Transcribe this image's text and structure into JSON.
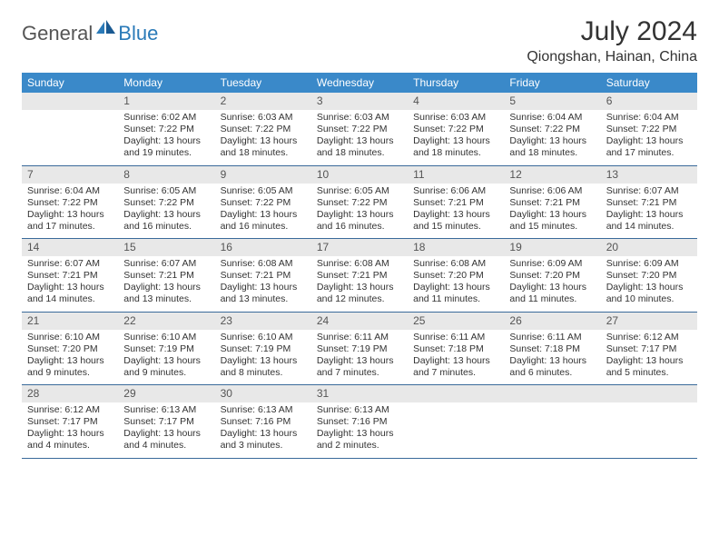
{
  "logo": {
    "general": "General",
    "blue": "Blue"
  },
  "title": "July 2024",
  "location": "Qiongshan, Hainan, China",
  "colors": {
    "header_bg": "#3a89c9",
    "header_text": "#ffffff",
    "daynum_bg": "#e8e8e8",
    "row_divider": "#3a6a9a",
    "logo_blue": "#2a7ab8",
    "logo_gray": "#555555"
  },
  "weekdays": [
    "Sunday",
    "Monday",
    "Tuesday",
    "Wednesday",
    "Thursday",
    "Friday",
    "Saturday"
  ],
  "weeks": [
    [
      {
        "empty": true
      },
      {
        "day": "1",
        "sunrise": "Sunrise: 6:02 AM",
        "sunset": "Sunset: 7:22 PM",
        "dl1": "Daylight: 13 hours",
        "dl2": "and 19 minutes."
      },
      {
        "day": "2",
        "sunrise": "Sunrise: 6:03 AM",
        "sunset": "Sunset: 7:22 PM",
        "dl1": "Daylight: 13 hours",
        "dl2": "and 18 minutes."
      },
      {
        "day": "3",
        "sunrise": "Sunrise: 6:03 AM",
        "sunset": "Sunset: 7:22 PM",
        "dl1": "Daylight: 13 hours",
        "dl2": "and 18 minutes."
      },
      {
        "day": "4",
        "sunrise": "Sunrise: 6:03 AM",
        "sunset": "Sunset: 7:22 PM",
        "dl1": "Daylight: 13 hours",
        "dl2": "and 18 minutes."
      },
      {
        "day": "5",
        "sunrise": "Sunrise: 6:04 AM",
        "sunset": "Sunset: 7:22 PM",
        "dl1": "Daylight: 13 hours",
        "dl2": "and 18 minutes."
      },
      {
        "day": "6",
        "sunrise": "Sunrise: 6:04 AM",
        "sunset": "Sunset: 7:22 PM",
        "dl1": "Daylight: 13 hours",
        "dl2": "and 17 minutes."
      }
    ],
    [
      {
        "day": "7",
        "sunrise": "Sunrise: 6:04 AM",
        "sunset": "Sunset: 7:22 PM",
        "dl1": "Daylight: 13 hours",
        "dl2": "and 17 minutes."
      },
      {
        "day": "8",
        "sunrise": "Sunrise: 6:05 AM",
        "sunset": "Sunset: 7:22 PM",
        "dl1": "Daylight: 13 hours",
        "dl2": "and 16 minutes."
      },
      {
        "day": "9",
        "sunrise": "Sunrise: 6:05 AM",
        "sunset": "Sunset: 7:22 PM",
        "dl1": "Daylight: 13 hours",
        "dl2": "and 16 minutes."
      },
      {
        "day": "10",
        "sunrise": "Sunrise: 6:05 AM",
        "sunset": "Sunset: 7:22 PM",
        "dl1": "Daylight: 13 hours",
        "dl2": "and 16 minutes."
      },
      {
        "day": "11",
        "sunrise": "Sunrise: 6:06 AM",
        "sunset": "Sunset: 7:21 PM",
        "dl1": "Daylight: 13 hours",
        "dl2": "and 15 minutes."
      },
      {
        "day": "12",
        "sunrise": "Sunrise: 6:06 AM",
        "sunset": "Sunset: 7:21 PM",
        "dl1": "Daylight: 13 hours",
        "dl2": "and 15 minutes."
      },
      {
        "day": "13",
        "sunrise": "Sunrise: 6:07 AM",
        "sunset": "Sunset: 7:21 PM",
        "dl1": "Daylight: 13 hours",
        "dl2": "and 14 minutes."
      }
    ],
    [
      {
        "day": "14",
        "sunrise": "Sunrise: 6:07 AM",
        "sunset": "Sunset: 7:21 PM",
        "dl1": "Daylight: 13 hours",
        "dl2": "and 14 minutes."
      },
      {
        "day": "15",
        "sunrise": "Sunrise: 6:07 AM",
        "sunset": "Sunset: 7:21 PM",
        "dl1": "Daylight: 13 hours",
        "dl2": "and 13 minutes."
      },
      {
        "day": "16",
        "sunrise": "Sunrise: 6:08 AM",
        "sunset": "Sunset: 7:21 PM",
        "dl1": "Daylight: 13 hours",
        "dl2": "and 13 minutes."
      },
      {
        "day": "17",
        "sunrise": "Sunrise: 6:08 AM",
        "sunset": "Sunset: 7:21 PM",
        "dl1": "Daylight: 13 hours",
        "dl2": "and 12 minutes."
      },
      {
        "day": "18",
        "sunrise": "Sunrise: 6:08 AM",
        "sunset": "Sunset: 7:20 PM",
        "dl1": "Daylight: 13 hours",
        "dl2": "and 11 minutes."
      },
      {
        "day": "19",
        "sunrise": "Sunrise: 6:09 AM",
        "sunset": "Sunset: 7:20 PM",
        "dl1": "Daylight: 13 hours",
        "dl2": "and 11 minutes."
      },
      {
        "day": "20",
        "sunrise": "Sunrise: 6:09 AM",
        "sunset": "Sunset: 7:20 PM",
        "dl1": "Daylight: 13 hours",
        "dl2": "and 10 minutes."
      }
    ],
    [
      {
        "day": "21",
        "sunrise": "Sunrise: 6:10 AM",
        "sunset": "Sunset: 7:20 PM",
        "dl1": "Daylight: 13 hours",
        "dl2": "and 9 minutes."
      },
      {
        "day": "22",
        "sunrise": "Sunrise: 6:10 AM",
        "sunset": "Sunset: 7:19 PM",
        "dl1": "Daylight: 13 hours",
        "dl2": "and 9 minutes."
      },
      {
        "day": "23",
        "sunrise": "Sunrise: 6:10 AM",
        "sunset": "Sunset: 7:19 PM",
        "dl1": "Daylight: 13 hours",
        "dl2": "and 8 minutes."
      },
      {
        "day": "24",
        "sunrise": "Sunrise: 6:11 AM",
        "sunset": "Sunset: 7:19 PM",
        "dl1": "Daylight: 13 hours",
        "dl2": "and 7 minutes."
      },
      {
        "day": "25",
        "sunrise": "Sunrise: 6:11 AM",
        "sunset": "Sunset: 7:18 PM",
        "dl1": "Daylight: 13 hours",
        "dl2": "and 7 minutes."
      },
      {
        "day": "26",
        "sunrise": "Sunrise: 6:11 AM",
        "sunset": "Sunset: 7:18 PM",
        "dl1": "Daylight: 13 hours",
        "dl2": "and 6 minutes."
      },
      {
        "day": "27",
        "sunrise": "Sunrise: 6:12 AM",
        "sunset": "Sunset: 7:17 PM",
        "dl1": "Daylight: 13 hours",
        "dl2": "and 5 minutes."
      }
    ],
    [
      {
        "day": "28",
        "sunrise": "Sunrise: 6:12 AM",
        "sunset": "Sunset: 7:17 PM",
        "dl1": "Daylight: 13 hours",
        "dl2": "and 4 minutes."
      },
      {
        "day": "29",
        "sunrise": "Sunrise: 6:13 AM",
        "sunset": "Sunset: 7:17 PM",
        "dl1": "Daylight: 13 hours",
        "dl2": "and 4 minutes."
      },
      {
        "day": "30",
        "sunrise": "Sunrise: 6:13 AM",
        "sunset": "Sunset: 7:16 PM",
        "dl1": "Daylight: 13 hours",
        "dl2": "and 3 minutes."
      },
      {
        "day": "31",
        "sunrise": "Sunrise: 6:13 AM",
        "sunset": "Sunset: 7:16 PM",
        "dl1": "Daylight: 13 hours",
        "dl2": "and 2 minutes."
      },
      {
        "empty": true
      },
      {
        "empty": true
      },
      {
        "empty": true
      }
    ]
  ]
}
